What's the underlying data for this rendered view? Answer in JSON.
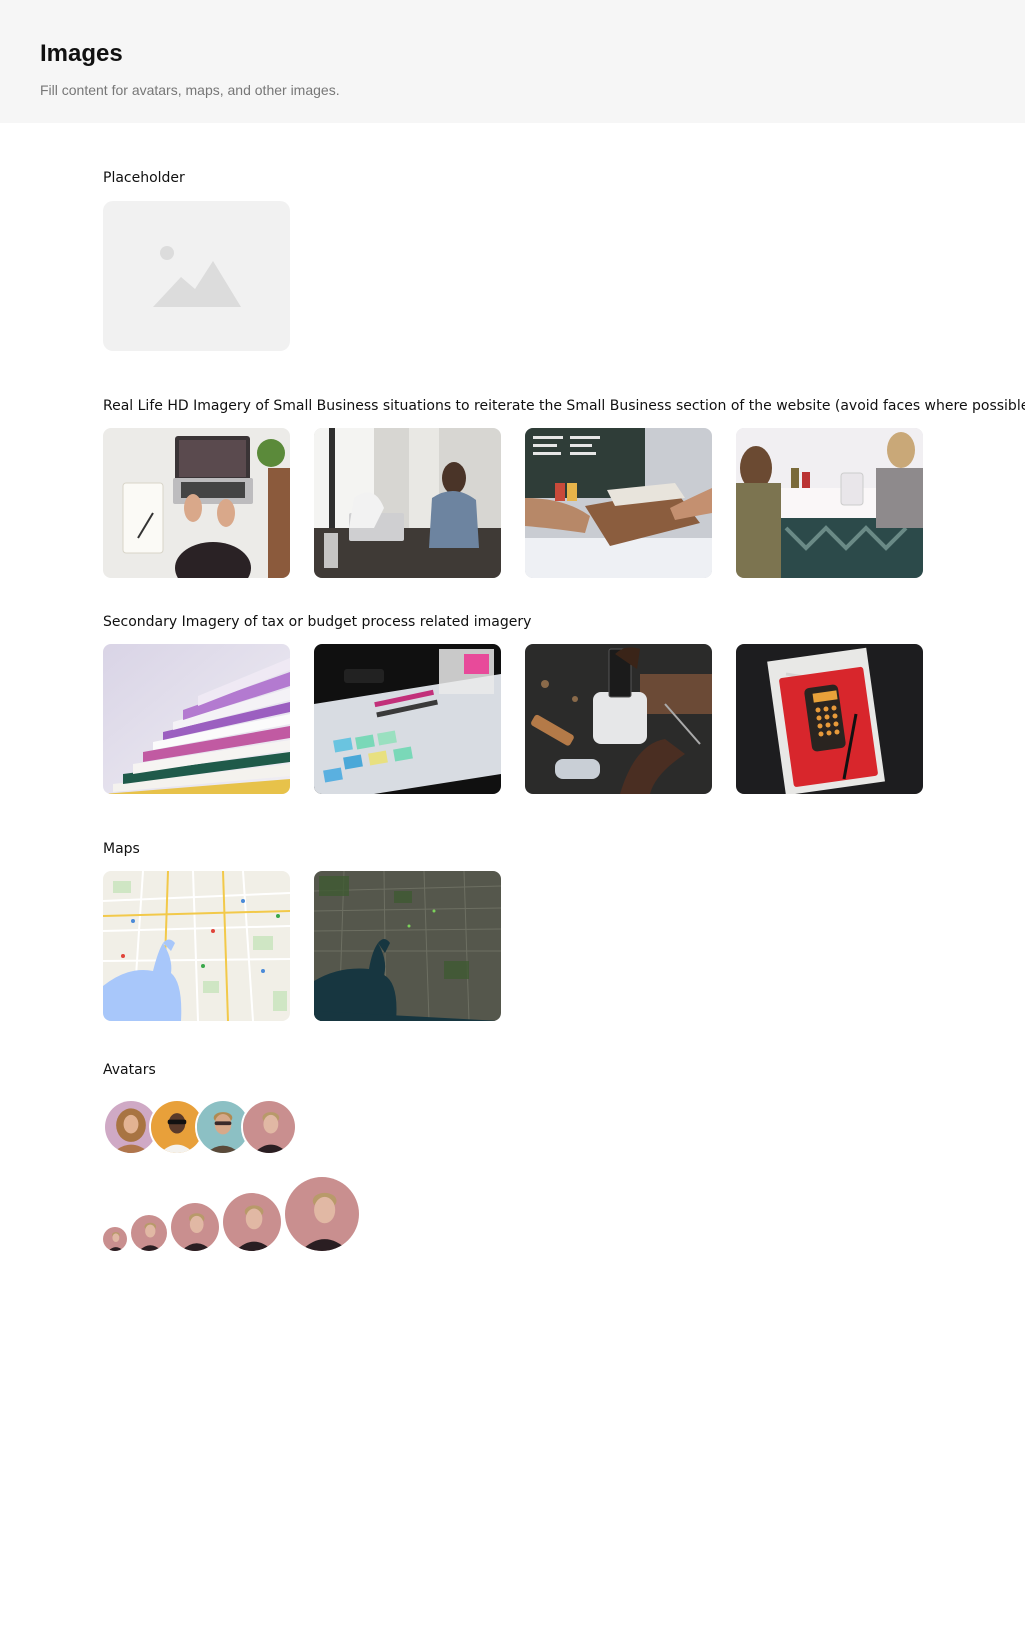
{
  "header": {
    "title": "Images",
    "subtitle": "Fill content for avatars, maps, and other images."
  },
  "sections": {
    "placeholder": {
      "label": "Placeholder",
      "icon": "image-placeholder-icon"
    },
    "small_business": {
      "label": "Real Life HD Imagery of Small Business situations to reiterate the Small Business section of the website (avoid faces where possible)"
    },
    "tax": {
      "label": "Secondary Imagery of tax or budget process related imagery"
    },
    "maps": {
      "label": "Maps"
    },
    "avatars": {
      "label": "Avatars"
    }
  },
  "colors": {
    "header_bg": "#f6f6f6",
    "placeholder_bg": "#f1f1f1",
    "placeholder_icon": "#dcdcdc",
    "map_water": "#a8c7fa",
    "satellite_water": "#173640",
    "avatar_bg_pink": "#c98f8f",
    "avatar_bg_orange": "#e8a03a",
    "avatar_bg_teal": "#8cc0c4",
    "avatar_bg_lilac": "#cfa9c5"
  }
}
